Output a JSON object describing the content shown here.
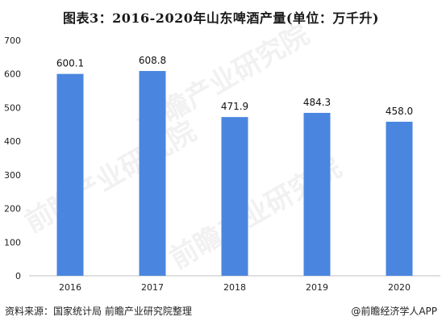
{
  "title": "图表3：2016-2020年山东啤酒产量(单位：万千升)",
  "source_text": "资料来源：国家统计局 前瞻产业研究院整理",
  "brand_text": "@前瞻经济学人APP",
  "watermark_text": "前瞻产业研究院",
  "chart_data": {
    "type": "bar",
    "categories": [
      "2016",
      "2017",
      "2018",
      "2019",
      "2020"
    ],
    "values": [
      600.1,
      608.8,
      471.9,
      484.3,
      458.0
    ],
    "value_labels": [
      "600.1",
      "608.8",
      "471.9",
      "484.3",
      "458.0"
    ],
    "ylim": [
      0,
      700
    ],
    "yticks": [
      "0",
      "100",
      "200",
      "300",
      "400",
      "500",
      "600",
      "700"
    ],
    "bar_color": "#4a86df",
    "grid": false,
    "xlabel": "",
    "ylabel": ""
  }
}
